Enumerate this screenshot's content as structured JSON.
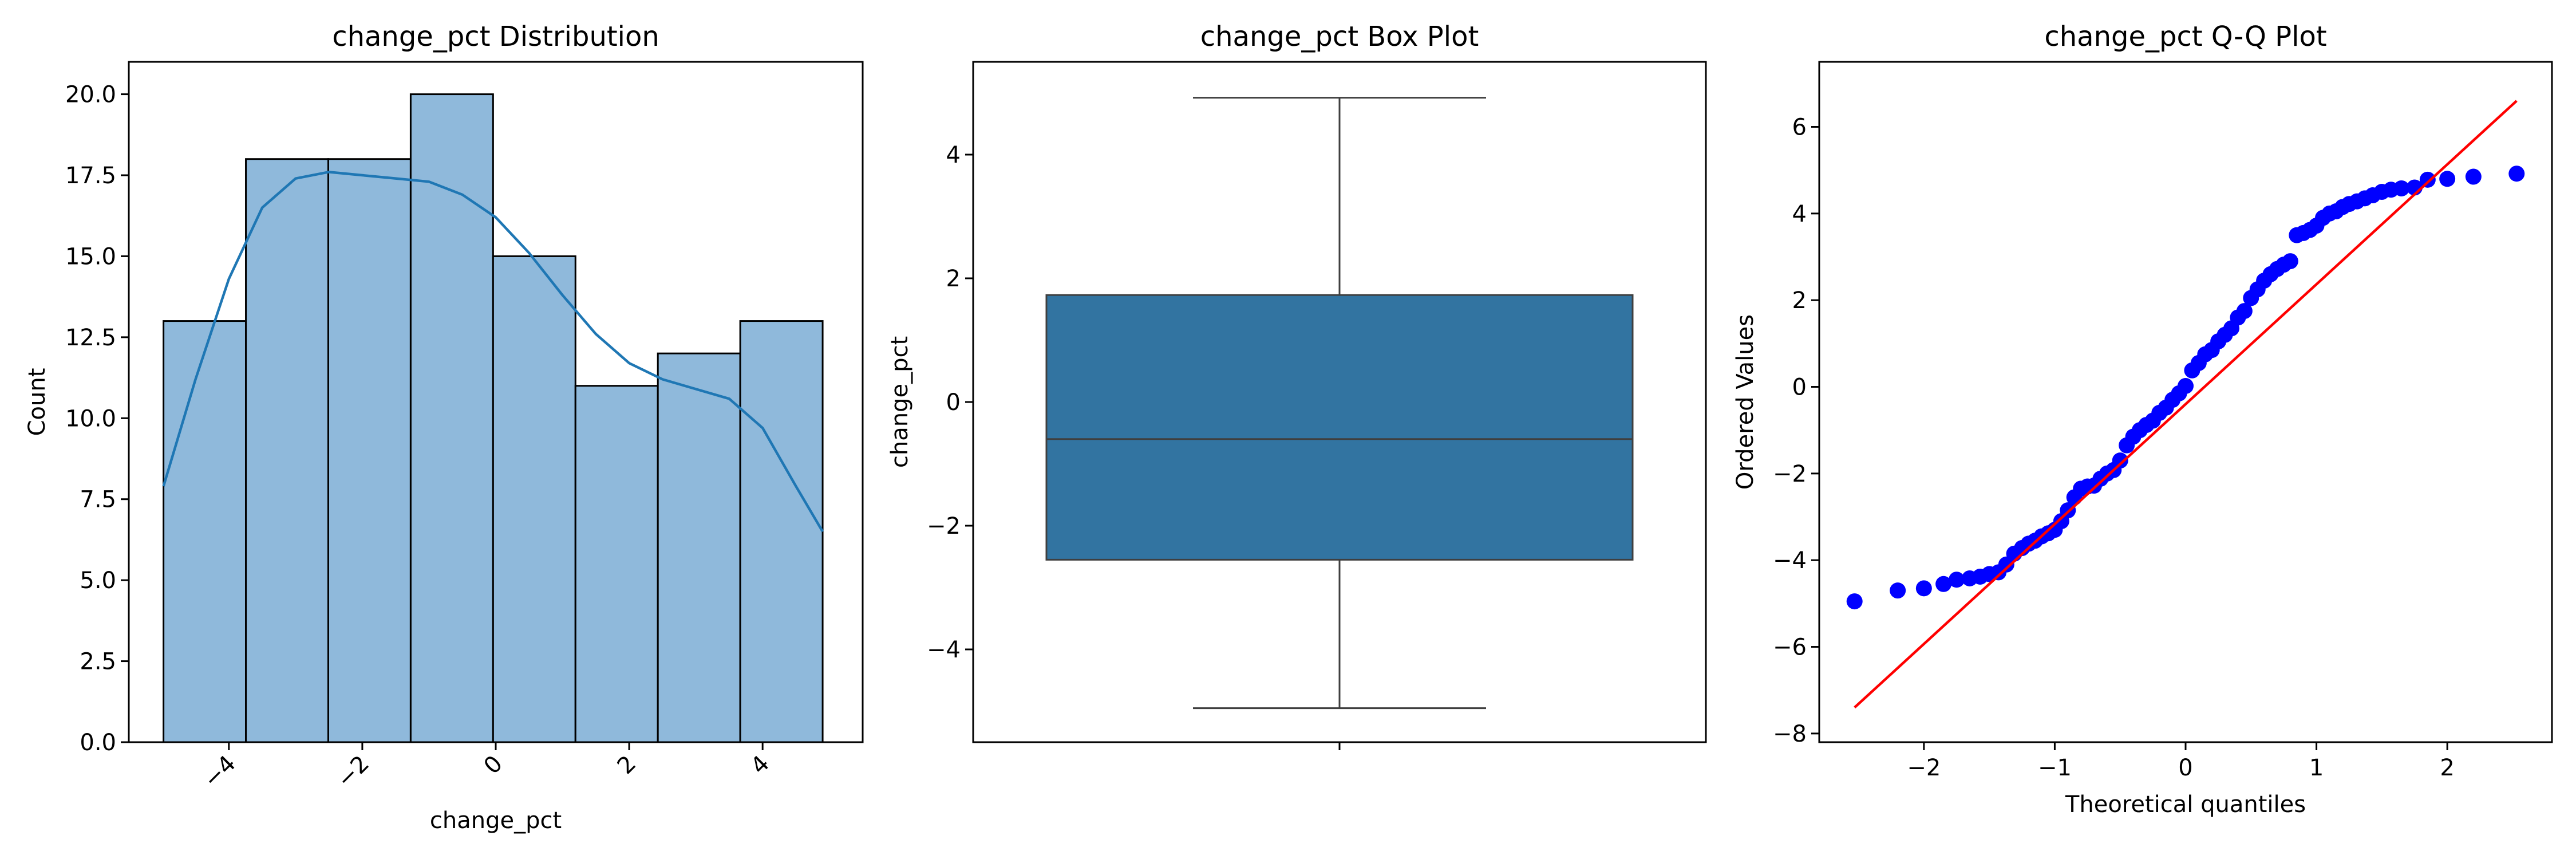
{
  "chart_data": [
    {
      "type": "bar",
      "title": "change_pct Distribution",
      "xlabel": "change_pct",
      "ylabel": "Count",
      "xlim": [
        -5.5,
        5.5
      ],
      "ylim": [
        0,
        21
      ],
      "xticks": [
        -4,
        -2,
        0,
        2,
        4
      ],
      "xtick_labels": [
        "−4",
        "−2",
        "0",
        "2",
        "4"
      ],
      "yticks": [
        0,
        2.5,
        5,
        7.5,
        10,
        12.5,
        15,
        17.5,
        20
      ],
      "ytick_labels": [
        "0.0",
        "2.5",
        "5.0",
        "7.5",
        "10.0",
        "12.5",
        "15.0",
        "17.5",
        "20.0"
      ],
      "bin_edges": [
        -4.98,
        -3.745,
        -2.51,
        -1.275,
        -0.04,
        1.195,
        2.43,
        3.665,
        4.9
      ],
      "values": [
        13,
        18,
        18,
        20,
        15,
        11,
        12,
        13
      ],
      "kde": {
        "x": [
          -4.98,
          -4.5,
          -4,
          -3.5,
          -3,
          -2.5,
          -2,
          -1.5,
          -1,
          -0.5,
          0,
          0.5,
          1,
          1.5,
          2,
          2.5,
          3,
          3.5,
          4,
          4.5,
          4.9
        ],
        "y": [
          7.9,
          11.2,
          14.3,
          16.5,
          17.4,
          17.6,
          17.5,
          17.4,
          17.3,
          16.9,
          16.2,
          15.1,
          13.8,
          12.6,
          11.7,
          11.2,
          10.9,
          10.6,
          9.7,
          7.9,
          6.5
        ]
      },
      "bar_color": "#8fb9db",
      "kde_color": "#1f77b4",
      "grid": false
    },
    {
      "type": "box",
      "title": "change_pct Box Plot",
      "xlabel": "",
      "ylabel": "change_pct",
      "ylim": [
        -5.5,
        5.5
      ],
      "yticks": [
        -4,
        -2,
        0,
        2,
        4
      ],
      "ytick_labels": [
        "−4",
        "−2",
        "0",
        "2",
        "4"
      ],
      "box": {
        "whisker_low": -4.95,
        "q1": -2.55,
        "median": -0.6,
        "q3": 1.73,
        "whisker_high": 4.92
      },
      "box_color": "#3274a1",
      "grid": false
    },
    {
      "type": "scatter",
      "title": "change_pct Q-Q Plot",
      "xlabel": "Theoretical quantiles",
      "ylabel": "Ordered Values",
      "xlim": [
        -2.8,
        2.8
      ],
      "ylim": [
        -8.2,
        7.5
      ],
      "xticks": [
        -2,
        -1,
        0,
        1,
        2
      ],
      "xtick_labels": [
        "−2",
        "−1",
        "0",
        "1",
        "2"
      ],
      "yticks": [
        -8,
        -6,
        -4,
        -2,
        0,
        2,
        4,
        6
      ],
      "ytick_labels": [
        "−8",
        "−6",
        "−4",
        "−2",
        "0",
        "2",
        "4",
        "6"
      ],
      "points": {
        "x": [
          -2.53,
          -2.2,
          -2.0,
          -1.85,
          -1.75,
          -1.65,
          -1.57,
          -1.5,
          -1.43,
          -1.37,
          -1.31,
          -1.25,
          -1.2,
          -1.15,
          -1.1,
          -1.05,
          -1.0,
          -0.95,
          -0.9,
          -0.85,
          -0.8,
          -0.75,
          -0.7,
          -0.65,
          -0.6,
          -0.55,
          -0.5,
          -0.45,
          -0.4,
          -0.35,
          -0.3,
          -0.25,
          -0.2,
          -0.15,
          -0.1,
          -0.05,
          0.0,
          0.05,
          0.1,
          0.15,
          0.2,
          0.25,
          0.3,
          0.35,
          0.4,
          0.45,
          0.5,
          0.55,
          0.6,
          0.65,
          0.7,
          0.75,
          0.8,
          0.85,
          0.9,
          0.95,
          1.0,
          1.05,
          1.1,
          1.15,
          1.2,
          1.25,
          1.31,
          1.37,
          1.43,
          1.5,
          1.57,
          1.65,
          1.75,
          1.85,
          2.0,
          2.2,
          2.53
        ],
        "y": [
          -4.95,
          -4.7,
          -4.65,
          -4.55,
          -4.45,
          -4.42,
          -4.38,
          -4.32,
          -4.28,
          -4.1,
          -3.85,
          -3.72,
          -3.62,
          -3.55,
          -3.45,
          -3.38,
          -3.3,
          -3.1,
          -2.85,
          -2.55,
          -2.35,
          -2.3,
          -2.28,
          -2.12,
          -2.0,
          -1.92,
          -1.7,
          -1.35,
          -1.15,
          -1.0,
          -0.88,
          -0.78,
          -0.6,
          -0.48,
          -0.3,
          -0.15,
          0.02,
          0.38,
          0.55,
          0.75,
          0.85,
          1.05,
          1.2,
          1.35,
          1.6,
          1.75,
          2.05,
          2.25,
          2.45,
          2.6,
          2.72,
          2.82,
          2.9,
          3.5,
          3.55,
          3.62,
          3.72,
          3.9,
          4.0,
          4.05,
          4.15,
          4.22,
          4.28,
          4.35,
          4.42,
          4.5,
          4.55,
          4.58,
          4.6,
          4.78,
          4.8,
          4.85,
          4.92
        ]
      },
      "fit_line": {
        "x": [
          -2.53,
          2.53
        ],
        "y": [
          -7.4,
          6.6
        ]
      },
      "point_color": "#0000ff",
      "line_color": "#ff0000",
      "grid": false
    }
  ]
}
